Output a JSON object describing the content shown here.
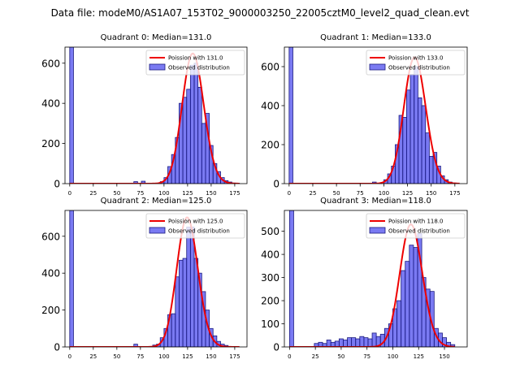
{
  "figure": {
    "title": "Data file: modeM0/AS1A07_153T02_9000003250_22005cztM0_level2_quad_clean.evt"
  },
  "chart_data": [
    {
      "type": "bar",
      "title": "Quadrant 0: Median=131.0",
      "xlim": [
        -5,
        188
      ],
      "ylim": [
        0,
        680
      ],
      "xticks": [
        0,
        25,
        50,
        75,
        100,
        125,
        150,
        175
      ],
      "yticks": [
        0,
        200,
        400,
        600
      ],
      "bin_width": 4,
      "hist_x": [
        0,
        68,
        76,
        96,
        100,
        104,
        108,
        112,
        116,
        120,
        124,
        128,
        132,
        136,
        140,
        144,
        148,
        152,
        156,
        160,
        164,
        168,
        172,
        176
      ],
      "hist_y": [
        680,
        10,
        12,
        10,
        30,
        85,
        145,
        230,
        400,
        430,
        470,
        590,
        600,
        480,
        300,
        350,
        190,
        100,
        60,
        30,
        15,
        8,
        3,
        2
      ],
      "poisson_mean": 131.0,
      "curve_range": [
        0,
        180
      ],
      "legend": [
        "Poission with 131.0",
        "Observed distribution"
      ]
    },
    {
      "type": "bar",
      "title": "Quadrant 1: Median=133.0",
      "xlim": [
        -5,
        188
      ],
      "ylim": [
        0,
        700
      ],
      "xticks": [
        0,
        25,
        50,
        75,
        100,
        125,
        150,
        175
      ],
      "yticks": [
        0,
        200,
        400,
        600
      ],
      "bin_width": 4,
      "hist_x": [
        0,
        88,
        100,
        104,
        108,
        112,
        116,
        120,
        124,
        128,
        132,
        136,
        140,
        144,
        148,
        152,
        156,
        160,
        164,
        168,
        172
      ],
      "hist_y": [
        700,
        8,
        20,
        50,
        90,
        200,
        350,
        340,
        480,
        560,
        600,
        440,
        400,
        260,
        140,
        160,
        90,
        40,
        20,
        8,
        3
      ],
      "poisson_mean": 133.0,
      "curve_range": [
        0,
        180
      ],
      "legend": [
        "Poission with 133.0",
        "Observed distribution"
      ]
    },
    {
      "type": "bar",
      "title": "Quadrant 2: Median=125.0",
      "xlim": [
        -5,
        188
      ],
      "ylim": [
        0,
        740
      ],
      "xticks": [
        0,
        25,
        50,
        75,
        100,
        125,
        150,
        175
      ],
      "yticks": [
        0,
        200,
        400,
        600
      ],
      "bin_width": 4,
      "hist_x": [
        0,
        68,
        88,
        92,
        96,
        100,
        104,
        108,
        112,
        116,
        120,
        124,
        128,
        132,
        136,
        140,
        144,
        148,
        152,
        156,
        160,
        164
      ],
      "hist_y": [
        740,
        15,
        10,
        15,
        50,
        100,
        175,
        180,
        380,
        470,
        480,
        650,
        650,
        480,
        400,
        300,
        200,
        100,
        60,
        30,
        15,
        8
      ],
      "poisson_mean": 125.0,
      "curve_range": [
        0,
        180
      ],
      "legend": [
        "Poission with 125.0",
        "Observed distribution"
      ]
    },
    {
      "type": "bar",
      "title": "Quadrant 3: Median=118.0",
      "xlim": [
        -5,
        172
      ],
      "ylim": [
        0,
        590
      ],
      "xticks": [
        0,
        25,
        50,
        75,
        100,
        125,
        150
      ],
      "yticks": [
        0,
        100,
        200,
        300,
        400,
        500
      ],
      "bin_width": 4,
      "hist_x": [
        0,
        24,
        28,
        32,
        36,
        40,
        44,
        48,
        52,
        56,
        60,
        64,
        68,
        72,
        76,
        80,
        84,
        88,
        92,
        96,
        100,
        104,
        108,
        112,
        116,
        120,
        124,
        128,
        132,
        136,
        140,
        144,
        148,
        152,
        156
      ],
      "hist_y": [
        590,
        15,
        20,
        15,
        30,
        20,
        25,
        35,
        30,
        40,
        40,
        35,
        45,
        40,
        35,
        60,
        45,
        55,
        80,
        100,
        165,
        200,
        330,
        370,
        440,
        430,
        490,
        300,
        250,
        240,
        80,
        60,
        40,
        20,
        10
      ],
      "poisson_mean": 118.0,
      "curve_range": [
        0,
        160
      ],
      "legend": [
        "Poission with 118.0",
        "Observed distribution"
      ]
    }
  ]
}
